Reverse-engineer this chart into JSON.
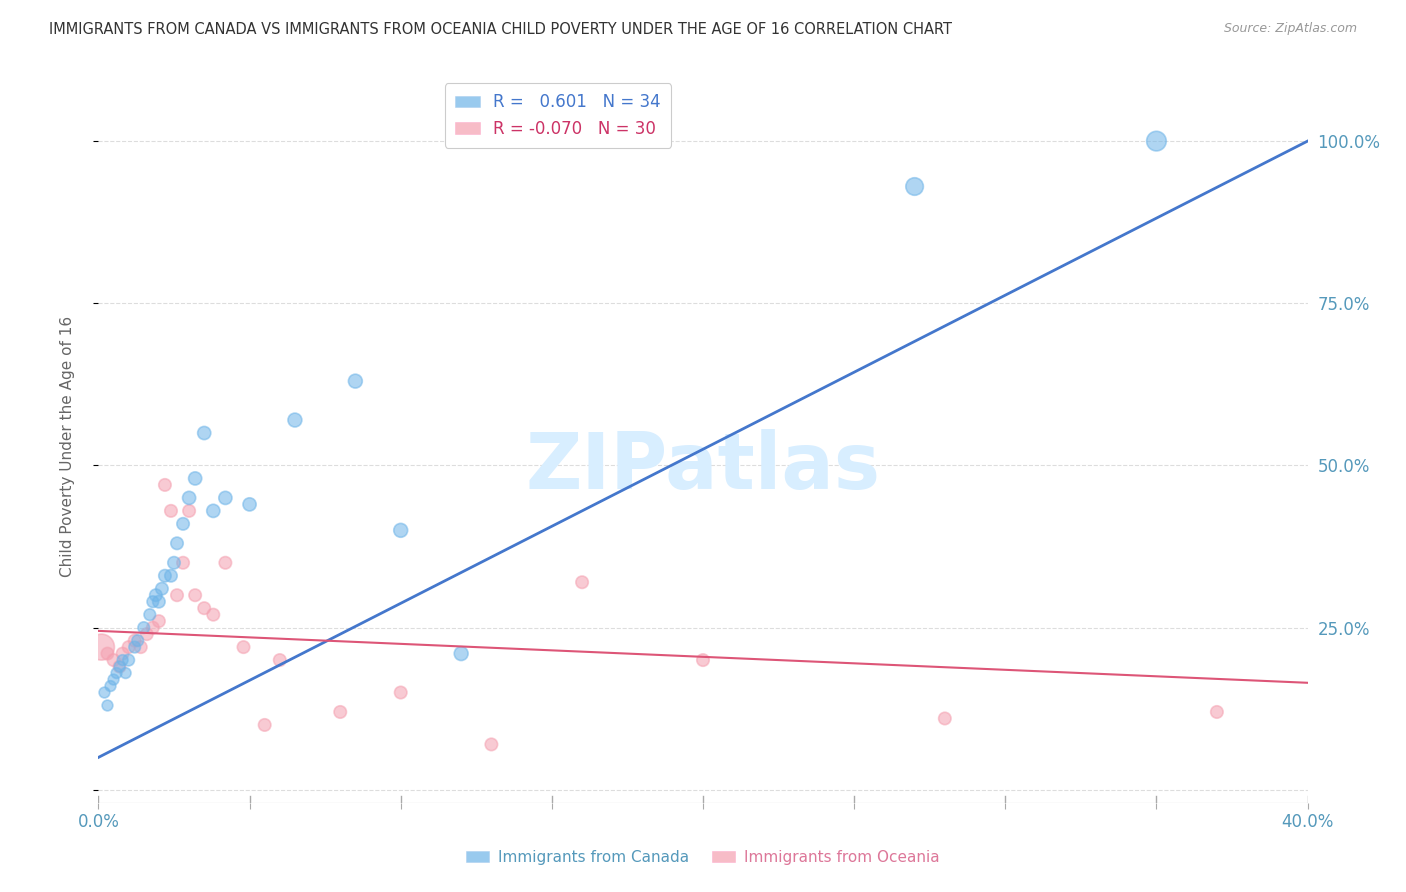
{
  "title": "IMMIGRANTS FROM CANADA VS IMMIGRANTS FROM OCEANIA CHILD POVERTY UNDER THE AGE OF 16 CORRELATION CHART",
  "source": "Source: ZipAtlas.com",
  "ylabel": "Child Poverty Under the Age of 16",
  "xlim": [
    0.0,
    0.4
  ],
  "ylim": [
    -0.02,
    1.08
  ],
  "xtick_vals": [
    0.0,
    0.05,
    0.1,
    0.15,
    0.2,
    0.25,
    0.3,
    0.35,
    0.4
  ],
  "xtick_labels": [
    "0.0%",
    "",
    "",
    "",
    "",
    "",
    "",
    "",
    "40.0%"
  ],
  "yticks": [
    0.0,
    0.25,
    0.5,
    0.75,
    1.0
  ],
  "ytick_labels_right": [
    "",
    "25.0%",
    "50.0%",
    "75.0%",
    "100.0%"
  ],
  "canada_color": "#6EB4E8",
  "oceania_color": "#F4A0B0",
  "canada_line_color": "#4477CC",
  "oceania_line_color": "#DD5577",
  "canada_R": 0.601,
  "canada_N": 34,
  "oceania_R": -0.07,
  "oceania_N": 30,
  "canada_x": [
    0.002,
    0.003,
    0.004,
    0.005,
    0.006,
    0.007,
    0.008,
    0.009,
    0.01,
    0.012,
    0.013,
    0.015,
    0.017,
    0.018,
    0.019,
    0.02,
    0.021,
    0.022,
    0.024,
    0.025,
    0.026,
    0.028,
    0.03,
    0.032,
    0.035,
    0.038,
    0.042,
    0.05,
    0.065,
    0.085,
    0.1,
    0.12,
    0.27,
    0.35
  ],
  "canada_y": [
    0.15,
    0.13,
    0.16,
    0.17,
    0.18,
    0.19,
    0.2,
    0.18,
    0.2,
    0.22,
    0.23,
    0.25,
    0.27,
    0.29,
    0.3,
    0.29,
    0.31,
    0.33,
    0.33,
    0.35,
    0.38,
    0.41,
    0.45,
    0.48,
    0.55,
    0.43,
    0.45,
    0.44,
    0.57,
    0.63,
    0.4,
    0.21,
    0.93,
    1.0
  ],
  "canada_size": [
    60,
    60,
    60,
    60,
    60,
    60,
    60,
    60,
    70,
    70,
    70,
    70,
    70,
    70,
    80,
    80,
    80,
    80,
    80,
    80,
    80,
    80,
    90,
    90,
    90,
    90,
    90,
    90,
    100,
    100,
    100,
    100,
    160,
    200
  ],
  "oceania_x": [
    0.001,
    0.003,
    0.005,
    0.007,
    0.008,
    0.01,
    0.012,
    0.014,
    0.016,
    0.018,
    0.02,
    0.022,
    0.024,
    0.026,
    0.028,
    0.03,
    0.032,
    0.035,
    0.038,
    0.042,
    0.048,
    0.055,
    0.06,
    0.08,
    0.1,
    0.13,
    0.16,
    0.2,
    0.28,
    0.37
  ],
  "oceania_y": [
    0.22,
    0.21,
    0.2,
    0.19,
    0.21,
    0.22,
    0.23,
    0.22,
    0.24,
    0.25,
    0.26,
    0.47,
    0.43,
    0.3,
    0.35,
    0.43,
    0.3,
    0.28,
    0.27,
    0.35,
    0.22,
    0.1,
    0.2,
    0.12,
    0.15,
    0.07,
    0.32,
    0.2,
    0.11,
    0.12
  ],
  "oceania_size": [
    350,
    80,
    80,
    80,
    80,
    80,
    80,
    80,
    80,
    80,
    80,
    80,
    80,
    80,
    80,
    80,
    80,
    80,
    80,
    80,
    80,
    80,
    80,
    80,
    80,
    80,
    80,
    80,
    80,
    80
  ],
  "watermark": "ZIPatlas",
  "watermark_color": "#D8EEFF",
  "background_color": "#FFFFFF",
  "grid_color": "#DDDDDD"
}
